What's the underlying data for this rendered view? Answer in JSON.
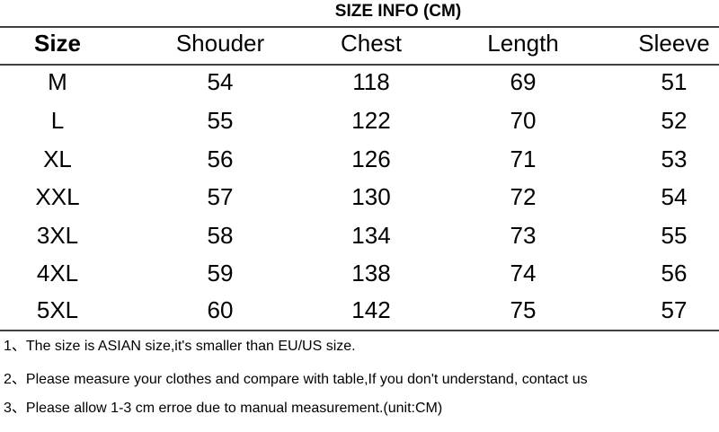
{
  "title": "SIZE INFO (CM)",
  "table": {
    "header": [
      "Size",
      "Shouder",
      "Chest",
      "Length",
      "Sleeve"
    ],
    "rows": [
      [
        "M",
        54,
        118,
        69,
        51
      ],
      [
        "L",
        55,
        122,
        70,
        52
      ],
      [
        "XL",
        56,
        126,
        71,
        53
      ],
      [
        "XXL",
        57,
        130,
        72,
        54
      ],
      [
        "3XL",
        58,
        134,
        73,
        55
      ],
      [
        "4XL",
        59,
        138,
        74,
        56
      ],
      [
        "5XL",
        60,
        142,
        75,
        57
      ]
    ]
  },
  "notes": [
    "1、The size is ASIAN size,it's smaller than EU/US size.",
    "2、Please measure your clothes and compare with table,If you don't understand, contact us",
    "3、Please allow 1-3 cm erroe due to manual measurement.(unit:CM)"
  ]
}
